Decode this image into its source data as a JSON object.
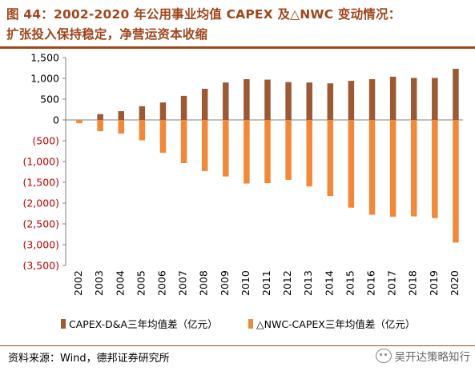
{
  "title": {
    "line1": "图 44：2002-2020 年公用事业均值 CAPEX 及△NWC 变动情况：",
    "line2": "扩张投入保持稳定，净营运资本收缩"
  },
  "source": "资料来源：Wind，德邦证券研究所",
  "watermark": "吴开达策略知行",
  "colors": {
    "capex": "#9b5a34",
    "nwc": "#f08a3a",
    "title": "#a0461c",
    "negative_tick": "#c00000"
  },
  "chart_data": {
    "type": "bar",
    "categories": [
      "2002",
      "2003",
      "2004",
      "2005",
      "2006",
      "2007",
      "2008",
      "2009",
      "2010",
      "2011",
      "2012",
      "2013",
      "2014",
      "2015",
      "2016",
      "2017",
      "2018",
      "2019",
      "2020"
    ],
    "series": [
      {
        "name": "CAPEX-D&A三年均值差（亿元）",
        "values": [
          -40,
          140,
          210,
          330,
          420,
          580,
          750,
          900,
          980,
          970,
          910,
          900,
          880,
          940,
          980,
          1040,
          1010,
          1010,
          1230
        ]
      },
      {
        "name": "△NWC-CAPEX三年均值差（亿元）",
        "values": [
          -80,
          -270,
          -330,
          -490,
          -790,
          -1040,
          -1230,
          -1360,
          -1530,
          -1520,
          -1440,
          -1600,
          -1830,
          -2110,
          -2280,
          -2330,
          -2320,
          -2360,
          -2950
        ]
      }
    ],
    "y_ticks": [
      "1,500",
      "1,000",
      "500",
      "0",
      "(500)",
      "(1,000)",
      "(1,500)",
      "(2,000)",
      "(2,500)",
      "(3,000)",
      "(3,500)"
    ],
    "y_tick_values": [
      1500,
      1000,
      500,
      0,
      -500,
      -1000,
      -1500,
      -2000,
      -2500,
      -3000,
      -3500
    ],
    "ylim": [
      -3500,
      1500
    ],
    "legend_position": "bottom",
    "grid": false
  }
}
